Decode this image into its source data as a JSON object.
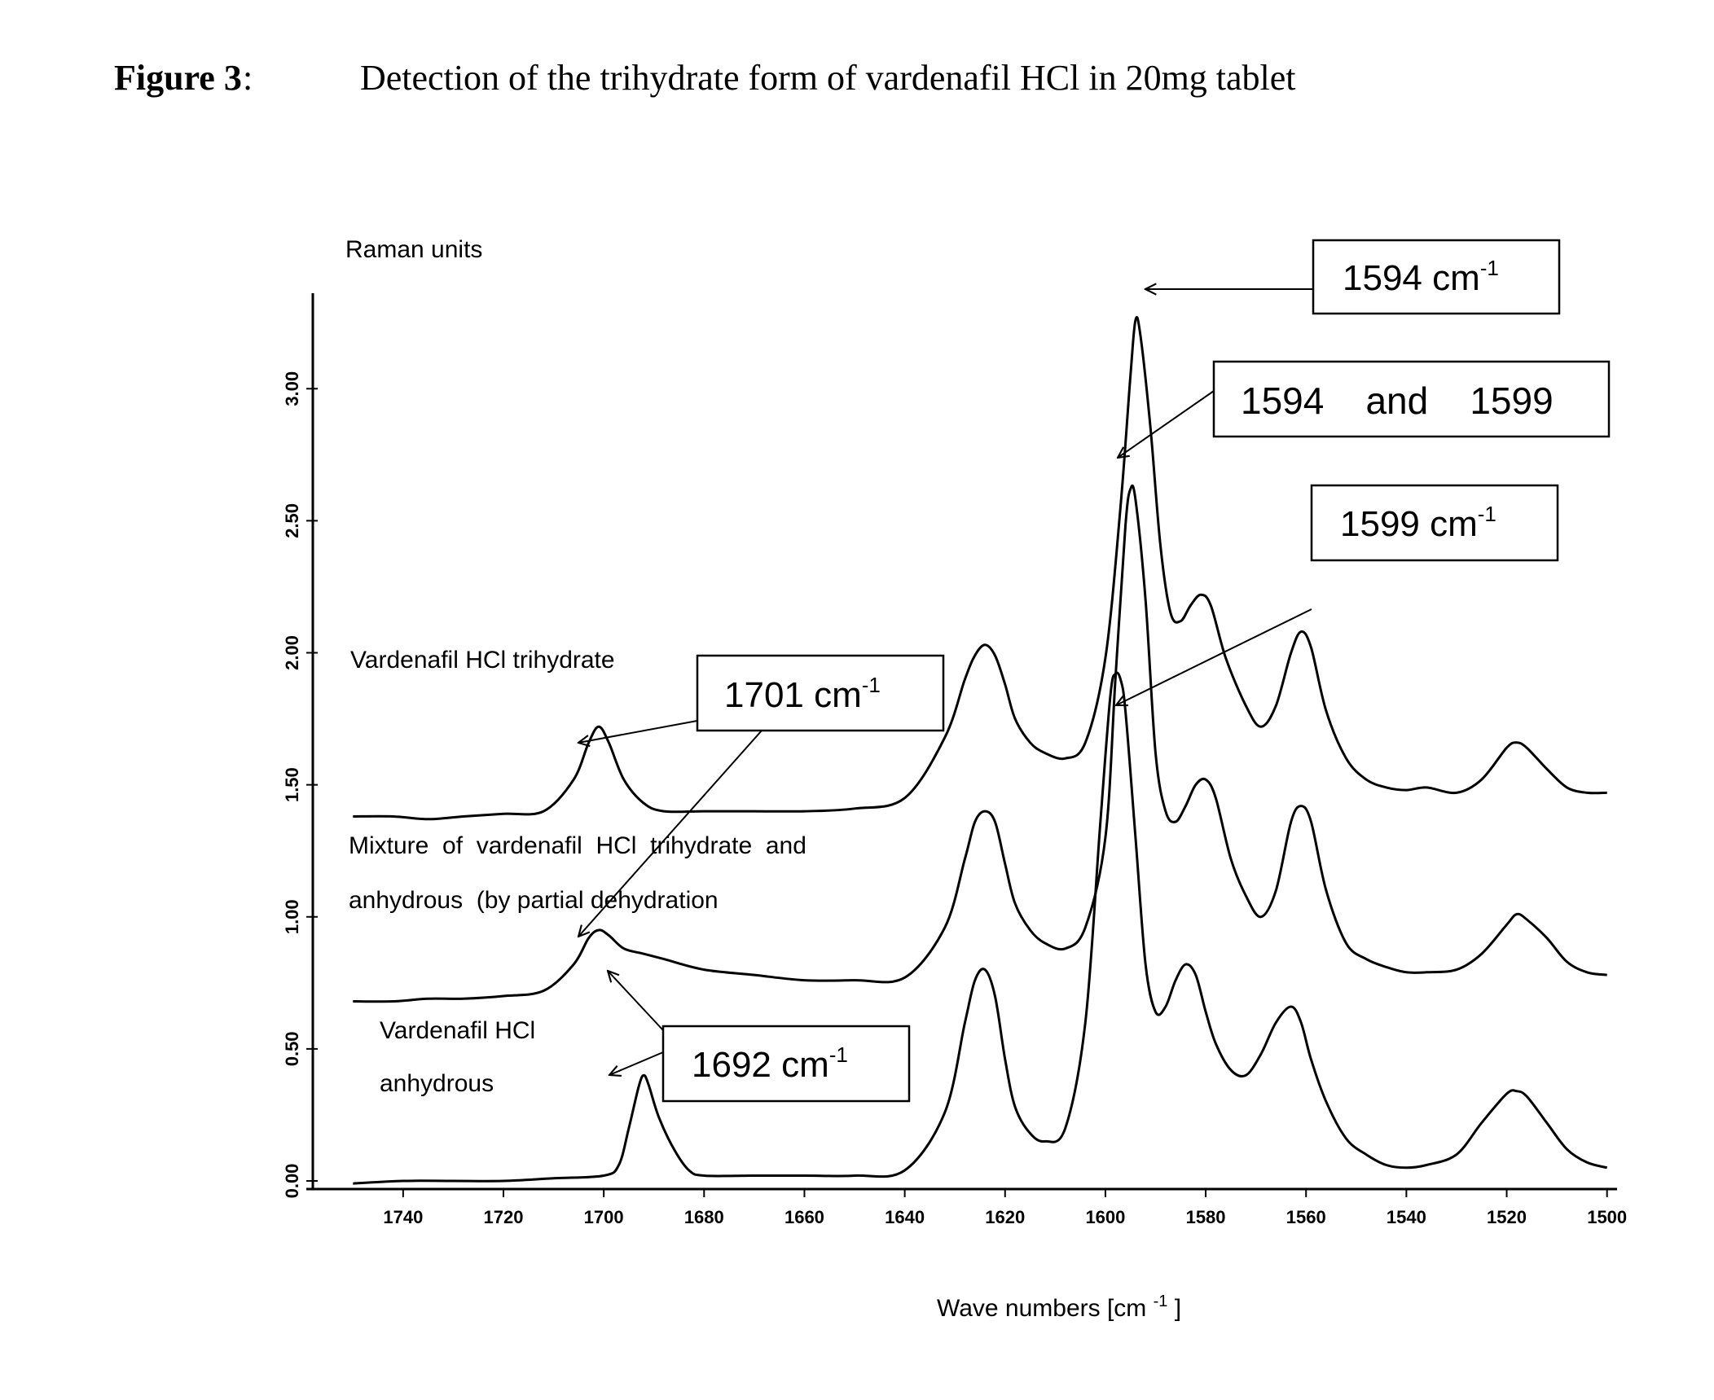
{
  "figure": {
    "label": "Figure 3",
    "colon": ":",
    "caption": "Detection of the trihydrate form of vardenafil HCl in  20mg tablet"
  },
  "chart_data": {
    "type": "line",
    "ylabel": "Raman units",
    "xlabel_main": "Wave numbers [cm",
    "xlabel_sup": "-1",
    "xlabel_end": "]",
    "xlim": [
      1750,
      1500
    ],
    "ylim": [
      -0.02,
      3.45
    ],
    "x_reversed": true,
    "grid": false,
    "xticks": [
      1740,
      1720,
      1700,
      1680,
      1660,
      1640,
      1620,
      1600,
      1580,
      1560,
      1540,
      1520,
      1500
    ],
    "yticks": [
      0.0,
      0.5,
      1.0,
      1.5,
      2.0,
      2.5,
      3.0
    ],
    "ytick_labels": [
      "0.00",
      "0.50",
      "1.00",
      "1.50",
      "2.00",
      "2.50",
      "3.00"
    ],
    "series": [
      {
        "name": "Vardenafil HCl trihydrate",
        "x": [
          1750,
          1742,
          1735,
          1728,
          1720,
          1712,
          1706,
          1703,
          1701,
          1699,
          1696,
          1692,
          1688,
          1680,
          1670,
          1660,
          1650,
          1640,
          1632,
          1628,
          1626,
          1624,
          1622,
          1620,
          1618,
          1615,
          1612,
          1608,
          1604,
          1600,
          1597,
          1595,
          1594,
          1593,
          1591,
          1589,
          1587,
          1585,
          1583,
          1581,
          1579,
          1576,
          1572,
          1569,
          1566,
          1563,
          1561,
          1559,
          1556,
          1552,
          1548,
          1544,
          1540,
          1536,
          1530,
          1525,
          1520,
          1518,
          1516,
          1512,
          1508,
          1504,
          1500
        ],
        "y": [
          1.38,
          1.38,
          1.37,
          1.38,
          1.39,
          1.4,
          1.52,
          1.66,
          1.72,
          1.66,
          1.52,
          1.43,
          1.4,
          1.4,
          1.4,
          1.4,
          1.41,
          1.45,
          1.68,
          1.9,
          1.99,
          2.03,
          1.99,
          1.88,
          1.75,
          1.66,
          1.62,
          1.6,
          1.66,
          1.98,
          2.55,
          3.05,
          3.26,
          3.2,
          2.85,
          2.4,
          2.15,
          2.12,
          2.18,
          2.22,
          2.18,
          1.98,
          1.8,
          1.72,
          1.8,
          2.0,
          2.08,
          2.02,
          1.78,
          1.6,
          1.52,
          1.49,
          1.48,
          1.49,
          1.47,
          1.52,
          1.64,
          1.66,
          1.64,
          1.56,
          1.49,
          1.47,
          1.47
        ]
      },
      {
        "name": "Mixture of vardenafil HCl trihydrate and anhydrous (by partial dehydration",
        "x": [
          1750,
          1742,
          1735,
          1728,
          1720,
          1712,
          1706,
          1703,
          1701,
          1699,
          1696,
          1692,
          1688,
          1680,
          1670,
          1660,
          1650,
          1640,
          1632,
          1628,
          1626,
          1624,
          1622,
          1620,
          1618,
          1615,
          1612,
          1608,
          1604,
          1600,
          1598,
          1596,
          1595,
          1594,
          1592,
          1590,
          1588,
          1586,
          1584,
          1582,
          1580,
          1578,
          1575,
          1572,
          1569,
          1566,
          1563,
          1561,
          1559,
          1556,
          1552,
          1548,
          1544,
          1540,
          1536,
          1530,
          1525,
          1520,
          1518,
          1516,
          1512,
          1508,
          1504,
          1500
        ],
        "y": [
          0.68,
          0.68,
          0.69,
          0.69,
          0.7,
          0.72,
          0.82,
          0.92,
          0.95,
          0.93,
          0.88,
          0.86,
          0.84,
          0.8,
          0.78,
          0.76,
          0.76,
          0.77,
          0.96,
          1.22,
          1.36,
          1.4,
          1.36,
          1.2,
          1.05,
          0.95,
          0.9,
          0.88,
          0.96,
          1.3,
          1.9,
          2.48,
          2.62,
          2.58,
          2.2,
          1.62,
          1.4,
          1.36,
          1.42,
          1.5,
          1.52,
          1.45,
          1.22,
          1.08,
          1.0,
          1.1,
          1.36,
          1.42,
          1.36,
          1.1,
          0.9,
          0.84,
          0.81,
          0.79,
          0.79,
          0.8,
          0.86,
          0.97,
          1.01,
          0.99,
          0.92,
          0.83,
          0.79,
          0.78
        ]
      },
      {
        "name": "Vardenafil HCl anhydrous",
        "x": [
          1750,
          1740,
          1730,
          1720,
          1710,
          1700,
          1697,
          1695,
          1693,
          1692,
          1691,
          1689,
          1686,
          1683,
          1680,
          1670,
          1660,
          1650,
          1640,
          1632,
          1628,
          1626,
          1624,
          1622,
          1620,
          1618,
          1615,
          1612,
          1608,
          1604,
          1601,
          1599,
          1598,
          1597,
          1596,
          1594,
          1592,
          1590,
          1588,
          1586,
          1584,
          1582,
          1580,
          1578,
          1575,
          1572,
          1569,
          1566,
          1563,
          1561,
          1559,
          1556,
          1552,
          1548,
          1544,
          1540,
          1536,
          1530,
          1525,
          1520,
          1518,
          1516,
          1512,
          1508,
          1504,
          1500
        ],
        "y": [
          -0.01,
          0.0,
          0.0,
          0.0,
          0.01,
          0.02,
          0.06,
          0.2,
          0.36,
          0.4,
          0.36,
          0.24,
          0.12,
          0.04,
          0.02,
          0.02,
          0.02,
          0.02,
          0.04,
          0.26,
          0.6,
          0.76,
          0.8,
          0.7,
          0.46,
          0.28,
          0.18,
          0.15,
          0.2,
          0.6,
          1.36,
          1.84,
          1.92,
          1.9,
          1.78,
          1.3,
          0.82,
          0.64,
          0.66,
          0.76,
          0.82,
          0.78,
          0.64,
          0.52,
          0.42,
          0.4,
          0.48,
          0.6,
          0.66,
          0.6,
          0.46,
          0.3,
          0.16,
          0.1,
          0.06,
          0.05,
          0.06,
          0.1,
          0.22,
          0.33,
          0.34,
          0.32,
          0.22,
          0.12,
          0.07,
          0.05
        ]
      }
    ]
  },
  "series_labels": {
    "trihydrate": "Vardenafil HCl trihydrate",
    "mixture_line1": "Mixture  of  vardenafil  HCl  trihydrate  and",
    "mixture_line2": "anhydrous  (by partial dehydration",
    "anhydrous_line1": "Vardenafil HCl",
    "anhydrous_line2": "anhydrous"
  },
  "annotations": [
    {
      "id": "box-1594",
      "value": "1594 cm",
      "sup": "-1"
    },
    {
      "id": "box-1594-1599",
      "value": "1594    and    1599",
      "sup": ""
    },
    {
      "id": "box-1599",
      "value": "1599 cm",
      "sup": "-1"
    },
    {
      "id": "box-1701",
      "value": "1701 cm",
      "sup": "-1"
    },
    {
      "id": "box-1692",
      "value": "1692 cm",
      "sup": "-1"
    }
  ]
}
